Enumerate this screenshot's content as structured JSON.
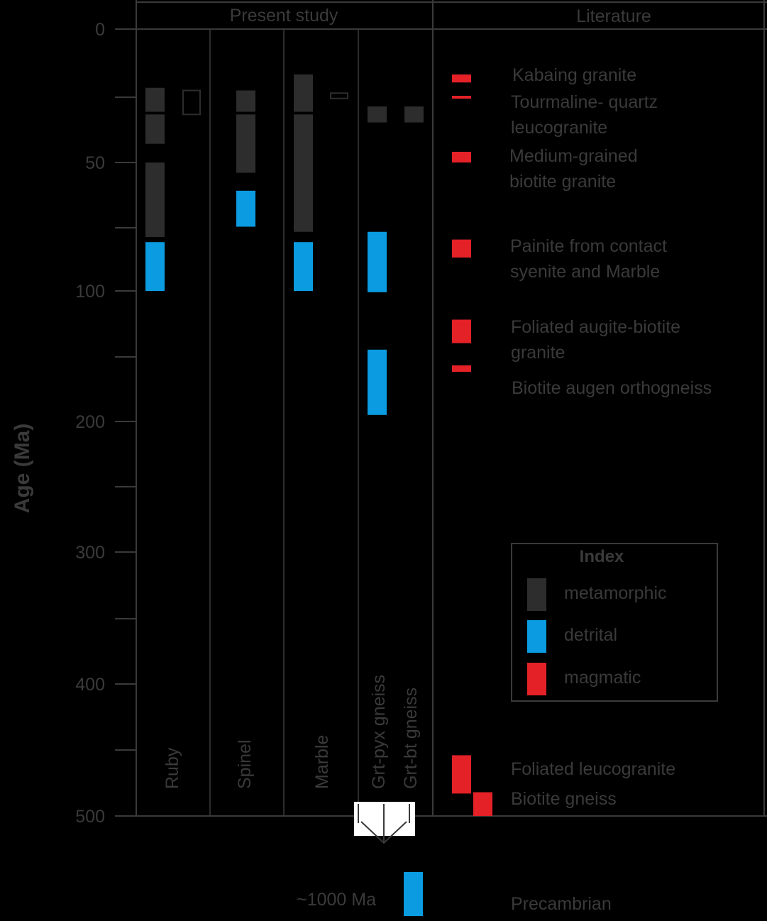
{
  "chart_data": {
    "type": "range-bar",
    "ylabel": "Age (Ma)",
    "y_ticks": [
      {
        "label": "0",
        "value": 0
      },
      {
        "label": "50",
        "value": 50
      },
      {
        "label": "100",
        "value": 100
      },
      {
        "label": "200",
        "value": 200
      },
      {
        "label": "300",
        "value": 300
      },
      {
        "label": "400",
        "value": 400
      },
      {
        "label": "500",
        "value": 500
      }
    ],
    "panels": {
      "present": "Present study",
      "literature": "Literature"
    },
    "colors": {
      "metamorphic": "#2d2d2d",
      "detrital": "#0a9be0",
      "magmatic": "#e32127",
      "text": "#3a3a3a",
      "hollow": "#2d2d2d"
    },
    "samples": [
      {
        "id": "ruby",
        "label": "Ruby",
        "ranges": [
          {
            "kind": "metamorphic",
            "from": 22,
            "to": 31
          },
          {
            "kind": "metamorphic",
            "from": 32,
            "to": 43
          },
          {
            "kind": "metamorphic",
            "from": 50,
            "to": 79
          },
          {
            "kind": "detrital",
            "from": 81,
            "to": 100
          },
          {
            "kind": "hollow",
            "from": 23,
            "to": 32
          }
        ]
      },
      {
        "id": "spinel",
        "label": "Spinel",
        "ranges": [
          {
            "kind": "metamorphic",
            "from": 23,
            "to": 31
          },
          {
            "kind": "metamorphic",
            "from": 32,
            "to": 54
          },
          {
            "kind": "detrital",
            "from": 61,
            "to": 75
          }
        ]
      },
      {
        "id": "marble",
        "label": "Marble",
        "ranges": [
          {
            "kind": "metamorphic",
            "from": 17,
            "to": 31
          },
          {
            "kind": "metamorphic",
            "from": 32,
            "to": 77
          },
          {
            "kind": "detrital",
            "from": 81,
            "to": 100
          },
          {
            "kind": "hollow",
            "from": 24,
            "to": 26
          }
        ]
      },
      {
        "id": "grtpyx",
        "label": "Grt-pyx gneiss",
        "ranges": [
          {
            "kind": "metamorphic",
            "from": 29,
            "to": 35
          },
          {
            "kind": "detrital",
            "from": 77,
            "to": 101
          },
          {
            "kind": "detrital",
            "from": 145,
            "to": 195
          },
          {
            "kind": "detrital",
            "from": 1000,
            "to": 1000
          }
        ]
      },
      {
        "id": "grtbt",
        "label": "Grt-bt gneiss",
        "ranges": [
          {
            "kind": "metamorphic",
            "from": 29,
            "to": 35
          }
        ]
      }
    ],
    "literature": [
      {
        "id": "kabaing",
        "lines": [
          "Kabaing granite"
        ],
        "from": 17,
        "to": 20
      },
      {
        "id": "tourmaline",
        "lines": [
          "Tourmaline- quartz",
          "leucogranite"
        ],
        "from": 25,
        "to": 26
      },
      {
        "id": "medium",
        "lines": [
          "Medium-grained",
          "biotite granite"
        ],
        "from": 46,
        "to": 50
      },
      {
        "id": "painite",
        "lines": [
          "Painite from contact",
          "syenite and Marble"
        ],
        "from": 80,
        "to": 87
      },
      {
        "id": "augite",
        "lines": [
          "Foliated augite-biotite",
          "granite"
        ],
        "from": 122,
        "to": 140
      },
      {
        "id": "augen",
        "lines": [
          "Biotite augen orthogneiss"
        ],
        "from": 157,
        "to": 162
      },
      {
        "id": "leuco",
        "lines": [
          "Foliated leucogranite"
        ],
        "from": 454,
        "to": 483
      },
      {
        "id": "bgneiss",
        "lines": [
          "Biotite gneiss"
        ],
        "from": 482,
        "to": 508
      }
    ],
    "index": {
      "title": "Index",
      "items": [
        {
          "kind": "metamorphic",
          "label": "metamorphic"
        },
        {
          "kind": "detrital",
          "label": "detrital"
        },
        {
          "kind": "magmatic",
          "label": "magmatic"
        }
      ]
    },
    "precambrian": {
      "age_label": "~1000 Ma",
      "label": "Precambrian"
    }
  }
}
